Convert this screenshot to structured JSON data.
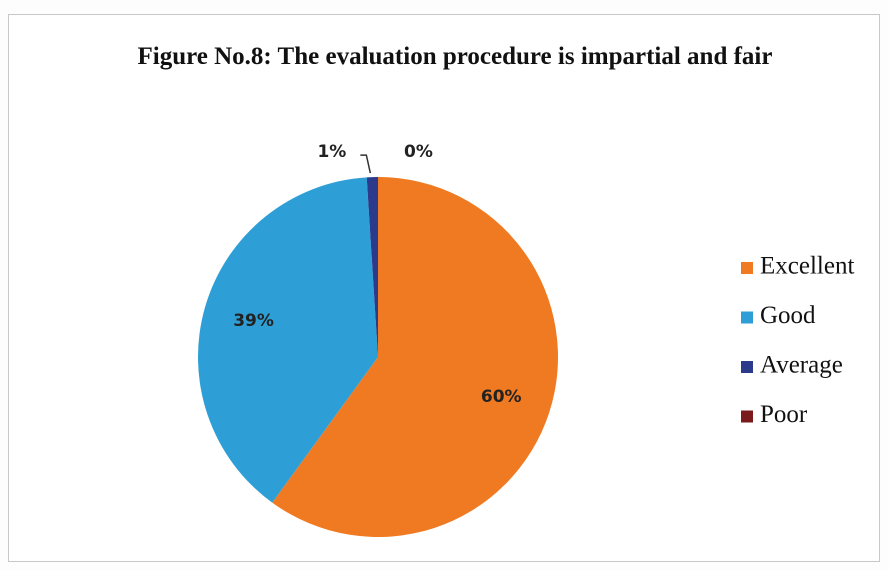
{
  "chart_data": {
    "type": "pie",
    "title": "Figure No.8: The evaluation procedure is impartial and fair",
    "categories": [
      "Excellent",
      "Good",
      "Average",
      "Poor"
    ],
    "values": [
      60,
      39,
      1,
      0
    ],
    "value_labels": [
      "60%",
      "39%",
      "1%",
      "0%"
    ],
    "colors": [
      "#f07a22",
      "#2e9fd6",
      "#2c3a8c",
      "#7a1a1a"
    ],
    "legend": "right"
  }
}
